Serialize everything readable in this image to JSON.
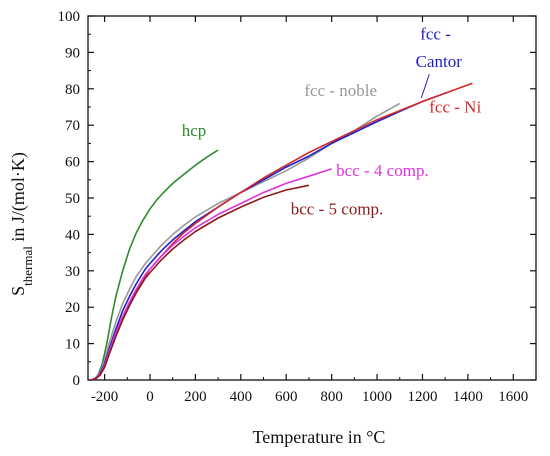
{
  "chart_data": {
    "type": "line",
    "title": "",
    "xlabel": "Temperature in °C",
    "ylabel": {
      "prefix": "S",
      "subscript": "thermal",
      "suffix": " in J/(mol·K)"
    },
    "xlim": [
      -273,
      1700
    ],
    "ylim": [
      0,
      100
    ],
    "xticks": [
      -200,
      0,
      200,
      400,
      600,
      800,
      1000,
      1200,
      1400,
      1600
    ],
    "yticks": [
      0,
      10,
      20,
      30,
      40,
      50,
      60,
      70,
      80,
      90,
      100
    ],
    "grid": false,
    "series": [
      {
        "name": "hcp",
        "color": "#2e8b2e",
        "x": [
          -250,
          -230,
          -210,
          -190,
          -170,
          -150,
          -120,
          -90,
          -60,
          -30,
          0,
          30,
          60,
          100,
          150,
          200,
          250,
          300
        ],
        "y": [
          0,
          1.2,
          4.5,
          10,
          17,
          23,
          30,
          36,
          40.5,
          44,
          47,
          49.5,
          51.5,
          54,
          56.5,
          59,
          61.2,
          63.2
        ]
      },
      {
        "name": "fcc - noble",
        "color": "#999999",
        "x": [
          -260,
          -240,
          -220,
          -200,
          -180,
          -150,
          -120,
          -90,
          -60,
          -20,
          0,
          50,
          100,
          150,
          200,
          300,
          400,
          500,
          600,
          700,
          800,
          900,
          1000,
          1100
        ],
        "y": [
          0,
          0.5,
          2.2,
          5.5,
          10,
          16,
          21,
          25,
          28.5,
          32,
          33.5,
          37,
          40,
          42.5,
          44.8,
          48.5,
          51.5,
          54.5,
          57.5,
          61,
          65,
          68.5,
          72.5,
          76
        ]
      },
      {
        "name": "fcc - Cantor",
        "color": "#1f1fc8",
        "x": [
          -260,
          -240,
          -220,
          -200,
          -180,
          -150,
          -120,
          -90,
          -60,
          -20,
          0,
          50,
          100,
          150,
          200,
          300,
          400,
          500,
          600,
          700,
          800,
          900,
          1000,
          1100,
          1200,
          1310
        ],
        "y": [
          0,
          0.4,
          1.8,
          4.5,
          8.5,
          14,
          19,
          23,
          26.5,
          30.5,
          32,
          35.5,
          38.5,
          41,
          43.5,
          47.5,
          51.5,
          55,
          58.5,
          61.5,
          65,
          68,
          71,
          73.8,
          76.5,
          79
        ]
      },
      {
        "name": "fcc - Ni",
        "color": "#d42a2a",
        "x": [
          -260,
          -240,
          -220,
          -200,
          -180,
          -150,
          -120,
          -90,
          -60,
          -20,
          0,
          50,
          100,
          150,
          200,
          300,
          400,
          500,
          600,
          700,
          800,
          900,
          1000,
          1100,
          1200,
          1300,
          1420
        ],
        "y": [
          0,
          0.3,
          1.5,
          3.8,
          7.5,
          12.5,
          17,
          21,
          24.5,
          28.5,
          30.5,
          34,
          37.5,
          40.5,
          43,
          47.5,
          51.5,
          55.5,
          59,
          62.5,
          65.5,
          68.5,
          71.5,
          74,
          76.5,
          78.8,
          81.5
        ]
      },
      {
        "name": "bcc - 4 comp.",
        "color": "#e033e0",
        "x": [
          -260,
          -240,
          -220,
          -200,
          -180,
          -150,
          -120,
          -90,
          -60,
          -20,
          0,
          50,
          100,
          150,
          200,
          300,
          400,
          500,
          600,
          700,
          800
        ],
        "y": [
          0,
          0.4,
          1.6,
          4,
          7.8,
          13,
          17.5,
          21.5,
          25,
          29,
          30.5,
          34,
          37,
          39.5,
          41.8,
          45.5,
          48.5,
          51.5,
          54,
          56,
          58
        ]
      },
      {
        "name": "bcc - 5 comp.",
        "color": "#8b1a1a",
        "x": [
          -260,
          -240,
          -220,
          -200,
          -180,
          -150,
          -120,
          -90,
          -60,
          -20,
          0,
          50,
          100,
          150,
          200,
          300,
          400,
          500,
          600,
          700
        ],
        "y": [
          0,
          0.3,
          1.3,
          3.5,
          7,
          12,
          16.5,
          20.5,
          24,
          28,
          29.5,
          33,
          36,
          38.5,
          40.8,
          44.5,
          47.5,
          50.2,
          52.2,
          53.5
        ]
      }
    ],
    "annotations": [
      {
        "text": "hcp",
        "color": "#2e8b2e",
        "x": 140,
        "y": 67
      },
      {
        "text": "fcc - noble",
        "color": "#999999",
        "x": 680,
        "y": 78
      },
      {
        "text": "fcc -",
        "color": "#1f1fc8",
        "x": 1190,
        "y": 93.5
      },
      {
        "text": "Cantor",
        "color": "#1f1fc8",
        "x": 1170,
        "y": 86
      },
      {
        "text": "fcc - Ni",
        "color": "#d42a2a",
        "x": 1230,
        "y": 73.5
      },
      {
        "text": "bcc - 4 comp.",
        "color": "#e033e0",
        "x": 820,
        "y": 56
      },
      {
        "text": "bcc - 5 comp.",
        "color": "#8b1a1a",
        "x": 620,
        "y": 45.5
      }
    ]
  }
}
